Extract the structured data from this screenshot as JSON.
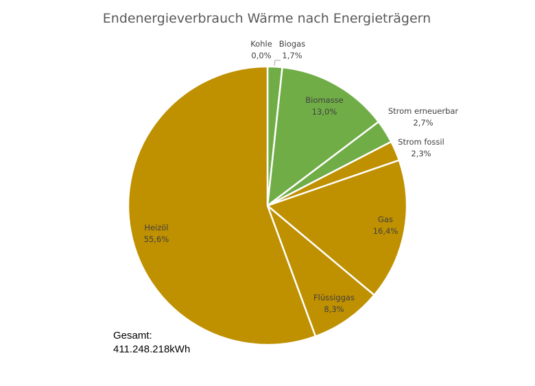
{
  "chart_data": {
    "type": "pie",
    "title": "Endenergieverbrauch Wärme nach Energieträgern",
    "start_angle_deg": 0,
    "direction": "clockwise",
    "slices": [
      {
        "label": "Kohle",
        "value": 0.0,
        "value_label": "0,0%",
        "color": "#70AD47"
      },
      {
        "label": "Biogas",
        "value": 1.7,
        "value_label": "1,7%",
        "color": "#70AD47"
      },
      {
        "label": "Biomasse",
        "value": 13.0,
        "value_label": "13,0%",
        "color": "#70AD47"
      },
      {
        "label": "Strom erneuerbar",
        "value": 2.7,
        "value_label": "2,7%",
        "color": "#70AD47"
      },
      {
        "label": "Strom fossil",
        "value": 2.3,
        "value_label": "2,3%",
        "color": "#BF9000"
      },
      {
        "label": "Gas",
        "value": 16.4,
        "value_label": "16,4%",
        "color": "#BF9000"
      },
      {
        "label": "Flüssiggas",
        "value": 8.3,
        "value_label": "8,3%",
        "color": "#BF9000"
      },
      {
        "label": "Heizöl",
        "value": 55.6,
        "value_label": "55,6%",
        "color": "#BF9000"
      }
    ],
    "annotation": {
      "line1": "Gesamt:",
      "line2": "411.248.218kWh"
    }
  }
}
